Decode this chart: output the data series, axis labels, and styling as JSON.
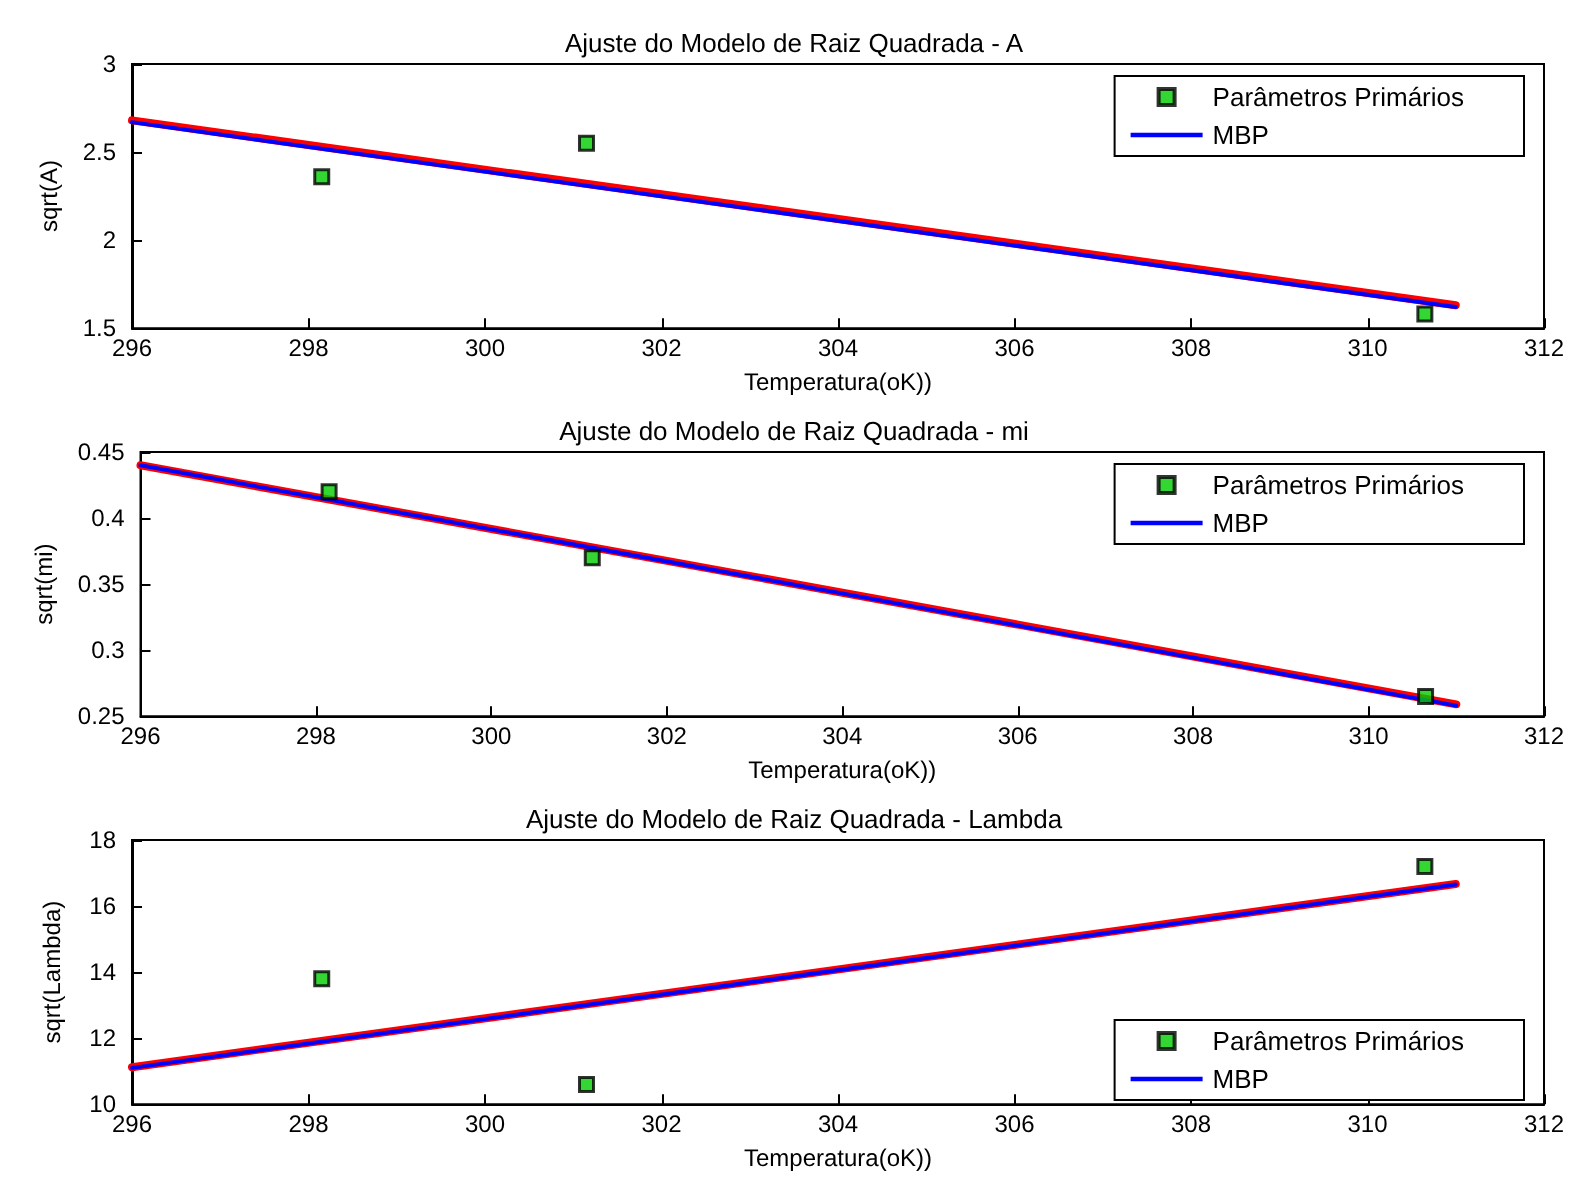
{
  "chart_data": [
    {
      "type": "scatter",
      "title": "Ajuste do Modelo de Raiz Quadrada - A",
      "xlabel": "Temperatura(oK))",
      "ylabel": "sqrt(A)",
      "xlim": [
        296,
        312
      ],
      "xticks": [
        296,
        298,
        300,
        302,
        304,
        306,
        308,
        310,
        312
      ],
      "ylim": [
        1.5,
        3
      ],
      "yticks": [
        1.5,
        2,
        2.5,
        3
      ],
      "legend": "top right",
      "line_style": "solid",
      "series": [
        {
          "name": "Parâmetros Primários",
          "color": "#00cc00",
          "marker": "square",
          "x": [
            298.15,
            301.15,
            310.65
          ],
          "values": [
            2.36,
            2.55,
            1.58
          ]
        },
        {
          "type": "line",
          "marker": "none",
          "color": "#ff0000",
          "x": [
            296,
            311
          ],
          "values": [
            2.68,
            1.63
          ]
        },
        {
          "type": "line",
          "marker": "none",
          "name": "MBP",
          "color": "#0000ff",
          "x": [
            296,
            311
          ],
          "values": [
            2.67,
            1.62
          ]
        }
      ]
    },
    {
      "type": "scatter",
      "title": "Ajuste do Modelo de Raiz Quadrada - mi",
      "xlabel": "Temperatura(oK))",
      "ylabel": "sqrt(mi)",
      "xlim": [
        296,
        312
      ],
      "xticks": [
        296,
        298,
        300,
        302,
        304,
        306,
        308,
        310,
        312
      ],
      "ylim": [
        0.25,
        0.45
      ],
      "yticks": [
        0.25,
        0.3,
        0.35,
        0.4,
        0.45
      ],
      "legend": "top right",
      "line_style": "solid",
      "series": [
        {
          "name": "Parâmetros Primários",
          "color": "#00cc00",
          "marker": "square",
          "x": [
            298.15,
            301.15,
            310.65
          ],
          "values": [
            0.42,
            0.37,
            0.265
          ]
        },
        {
          "type": "line",
          "marker": "none",
          "color": "#ff0000",
          "x": [
            296,
            311
          ],
          "values": [
            0.44,
            0.259
          ]
        },
        {
          "type": "line",
          "marker": "none",
          "name": "MBP",
          "color": "#0000ff",
          "x": [
            296,
            311
          ],
          "values": [
            0.44,
            0.258
          ]
        }
      ]
    },
    {
      "type": "scatter",
      "title": "Ajuste do Modelo de Raiz Quadrada - Lambda",
      "xlabel": "Temperatura(oK))",
      "ylabel": "sqrt(Lambda)",
      "xlim": [
        296,
        312
      ],
      "xticks": [
        296,
        298,
        300,
        302,
        304,
        306,
        308,
        310,
        312
      ],
      "ylim": [
        10,
        18
      ],
      "yticks": [
        10,
        12,
        14,
        16,
        18
      ],
      "legend": "bottom right",
      "line_style": "solid",
      "series": [
        {
          "name": "Parâmetros Primários",
          "color": "#00cc00",
          "marker": "square",
          "x": [
            298.15,
            301.15,
            310.65
          ],
          "values": [
            13.8,
            10.6,
            17.2
          ]
        },
        {
          "type": "line",
          "marker": "none",
          "color": "#ff0000",
          "x": [
            296,
            311
          ],
          "values": [
            11.12,
            16.67
          ]
        },
        {
          "type": "line",
          "marker": "none",
          "name": "MBP",
          "color": "#0000ff",
          "x": [
            296,
            311
          ],
          "values": [
            11.1,
            16.65
          ]
        }
      ]
    }
  ]
}
